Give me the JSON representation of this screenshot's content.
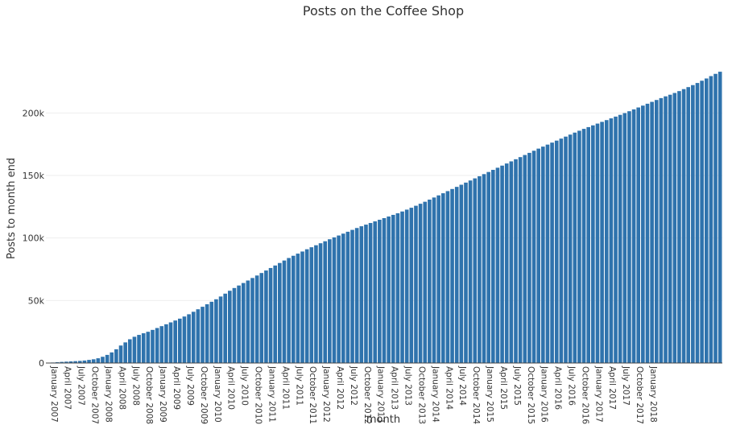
{
  "chart_data": {
    "type": "bar",
    "title": "Posts on the Coffee Shop",
    "xlabel": "month",
    "ylabel": "Posts to month end",
    "ylim": [
      0,
      235000
    ],
    "grid": true,
    "bar_color": "#2f73ad",
    "start_month": "2007-01",
    "y_ticks": [
      {
        "value": 0,
        "label": "0"
      },
      {
        "value": 50000,
        "label": "50k"
      },
      {
        "value": 100000,
        "label": "100k"
      },
      {
        "value": 150000,
        "label": "150k"
      },
      {
        "value": 200000,
        "label": "200k"
      }
    ],
    "x_tick_labels": [
      "January 2007",
      "April 2007",
      "July 2007",
      "October 2007",
      "January 2008",
      "April 2008",
      "July 2008",
      "October 2008",
      "January 2009",
      "April 2009",
      "July 2009",
      "October 2009",
      "January 2010",
      "April 2010",
      "July 2010",
      "October 2010",
      "January 2011",
      "April 2011",
      "July 2011",
      "October 2011",
      "January 2012",
      "April 2012",
      "July 2012",
      "October 2012",
      "January 2013",
      "April 2013",
      "July 2013",
      "October 2013",
      "January 2014",
      "April 2014",
      "July 2014",
      "October 2014",
      "January 2015",
      "April 2015",
      "July 2015",
      "October 2015",
      "January 2016",
      "April 2016",
      "July 2016",
      "October 2016",
      "January 2017",
      "April 2017",
      "July 2017",
      "October 2017",
      "January 2018"
    ],
    "values": [
      200,
      400,
      650,
      900,
      1100,
      1300,
      1500,
      1700,
      2000,
      2500,
      3000,
      3800,
      5000,
      6500,
      8500,
      11000,
      14000,
      16500,
      19000,
      21000,
      22500,
      23800,
      25000,
      26500,
      28000,
      29500,
      31000,
      32500,
      34000,
      35500,
      37200,
      39000,
      41000,
      43000,
      45000,
      47000,
      49000,
      51000,
      53200,
      55500,
      57800,
      60000,
      62000,
      64000,
      66000,
      68000,
      70000,
      72000,
      74000,
      76000,
      78000,
      80000,
      82000,
      84000,
      85800,
      87500,
      89200,
      91000,
      92600,
      94200,
      95800,
      97400,
      99000,
      100500,
      102000,
      103500,
      105000,
      106500,
      108000,
      109400,
      110700,
      112000,
      113300,
      114600,
      115900,
      117200,
      118500,
      119800,
      121200,
      122700,
      124200,
      125800,
      127400,
      129000,
      130700,
      132400,
      134100,
      135800,
      137500,
      139200,
      140900,
      142600,
      144300,
      146000,
      147700,
      149400,
      151100,
      152800,
      154500,
      156200,
      157900,
      159600,
      161300,
      163000,
      164700,
      166400,
      168100,
      169800,
      171500,
      173100,
      174700,
      176300,
      177900,
      179500,
      181100,
      182700,
      184300,
      185800,
      187300,
      188700,
      190100,
      191500,
      192900,
      194300,
      195700,
      197100,
      198500,
      199900,
      201400,
      202900,
      204400,
      205900,
      207400,
      208900,
      210400,
      211900,
      213300,
      214600,
      216000,
      217500,
      219100,
      220700,
      222300,
      224000,
      225800,
      227600,
      229500,
      231300,
      233000
    ]
  }
}
